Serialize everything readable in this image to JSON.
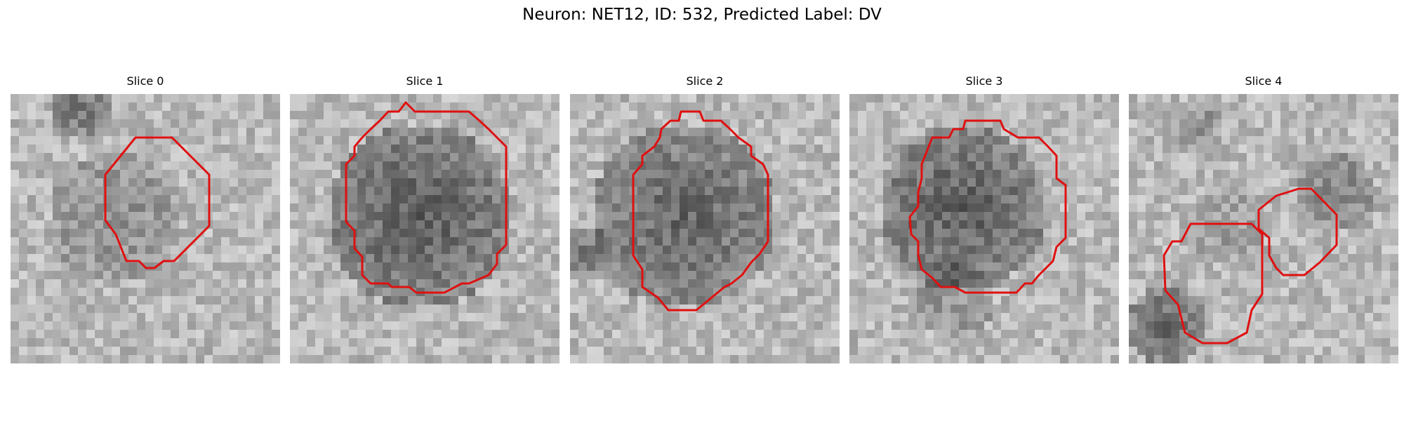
{
  "figure": {
    "title": "Neuron: NET12, ID: 532, Predicted Label: DV"
  },
  "panels": [
    {
      "title": "Slice 0"
    },
    {
      "title": "Slice 1"
    },
    {
      "title": "Slice 2"
    },
    {
      "title": "Slice 3"
    },
    {
      "title": "Slice 4"
    }
  ],
  "colors": {
    "contour": "#e01010",
    "background": "#ffffff"
  }
}
